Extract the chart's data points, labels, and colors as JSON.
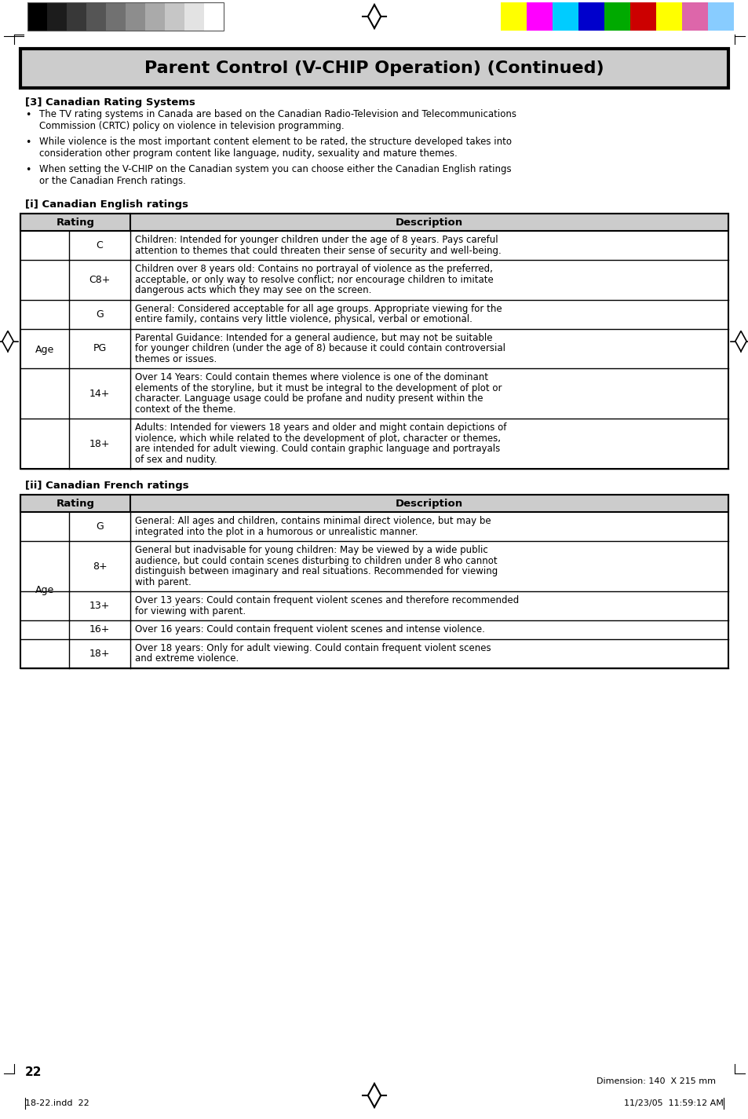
{
  "title": "Parent Control (V-CHIP Operation) (Continued)",
  "section3_header": "[3] Canadian Rating Systems",
  "bullets": [
    "The TV rating systems in Canada are based on the Canadian Radio-Television and Telecommunications\nCommission (CRTC) policy on violence in television programming.",
    "While violence is the most important content element to be rated, the structure developed takes into\nconsideration other program content like language, nudity, sexuality and mature themes.",
    "When setting the V-CHIP on the Canadian system you can choose either the Canadian English ratings\nor the Canadian French ratings."
  ],
  "section_i_header": "[i] Canadian English ratings",
  "english_table_age_label": "Age",
  "english_table_rows": [
    {
      "rating": "C",
      "description": "Children: Intended for younger children under the age of 8 years. Pays careful\nattention to themes that could threaten their sense of security and well-being."
    },
    {
      "rating": "C8+",
      "description": "Children over 8 years old: Contains no portrayal of violence as the preferred,\nacceptable, or only way to resolve conflict; nor encourage children to imitate\ndangerous acts which they may see on the screen."
    },
    {
      "rating": "G",
      "description": "General: Considered acceptable for all age groups. Appropriate viewing for the\nentire family, contains very little violence, physical, verbal or emotional."
    },
    {
      "rating": "PG",
      "description": "Parental Guidance: Intended for a general audience, but may not be suitable\nfor younger children (under the age of 8) because it could contain controversial\nthemes or issues."
    },
    {
      "rating": "14+",
      "description": "Over 14 Years: Could contain themes where violence is one of the dominant\nelements of the storyline, but it must be integral to the development of plot or\ncharacter. Language usage could be profane and nudity present within the\ncontext of the theme."
    },
    {
      "rating": "18+",
      "description": "Adults: Intended for viewers 18 years and older and might contain depictions of\nviolence, which while related to the development of plot, character or themes,\nare intended for adult viewing. Could contain graphic language and portrayals\nof sex and nudity."
    }
  ],
  "section_ii_header": "[ii] Canadian French ratings",
  "french_table_age_label": "Age",
  "french_table_rows": [
    {
      "rating": "G",
      "description": "General: All ages and children, contains minimal direct violence, but may be\nintegrated into the plot in a humorous or unrealistic manner."
    },
    {
      "rating": "8+",
      "description": "General but inadvisable for young children: May be viewed by a wide public\naudience, but could contain scenes disturbing to children under 8 who cannot\ndistinguish between imaginary and real situations. Recommended for viewing\nwith parent."
    },
    {
      "rating": "13+",
      "description": "Over 13 years: Could contain frequent violent scenes and therefore recommended\nfor viewing with parent."
    },
    {
      "rating": "16+",
      "description": "Over 16 years: Could contain frequent violent scenes and intense violence."
    },
    {
      "rating": "18+",
      "description": "Over 18 years: Only for adult viewing. Could contain frequent violent scenes\nand extreme violence."
    }
  ],
  "page_number": "22",
  "dimension_text": "Dimension: 140  X 215 mm",
  "footer_left": "18-22.indd  22",
  "footer_right": "11/23/05  11:59:12 AM",
  "bg_color": "#ffffff",
  "title_bg_color": "#cccccc",
  "title_border_color": "#000000",
  "header_bg_color": "#cccccc",
  "gray_colors": [
    "#000000",
    "#1c1c1c",
    "#383838",
    "#555555",
    "#717171",
    "#8d8d8d",
    "#aaaaaa",
    "#c6c6c6",
    "#e3e3e3",
    "#ffffff"
  ],
  "color_bars": [
    "#ffff00",
    "#ff00ff",
    "#00ccff",
    "#0000cc",
    "#00aa00",
    "#cc0000",
    "#ffff00",
    "#dd66aa",
    "#88ccff"
  ]
}
